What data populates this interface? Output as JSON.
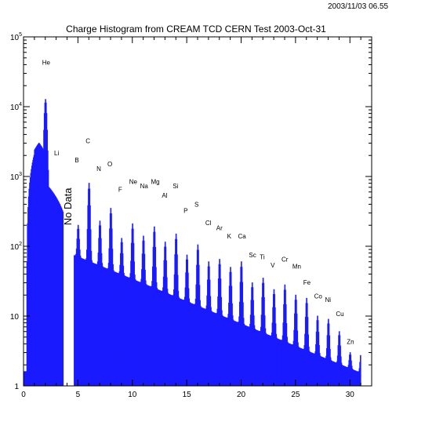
{
  "header": {
    "timestamp": "2003/11/03  06.55",
    "title": "Charge Histogram from CREAM TCD CERN Test 2003-Oct-31"
  },
  "chart_data": {
    "type": "bar",
    "title": "Charge Histogram from CREAM TCD CERN Test 2003-Oct-31",
    "xlabel": "",
    "ylabel": "",
    "xlim": [
      0,
      32
    ],
    "ylim": [
      1,
      100000
    ],
    "y_scale": "log",
    "grid": false,
    "x_ticks": [
      0,
      5,
      10,
      15,
      20,
      25,
      30
    ],
    "y_ticks": [
      {
        "value": 1,
        "base": "1",
        "exp": ""
      },
      {
        "value": 10,
        "base": "10",
        "exp": ""
      },
      {
        "value": 100,
        "base": "10",
        "exp": "2"
      },
      {
        "value": 1000,
        "base": "10",
        "exp": "3"
      },
      {
        "value": 10000,
        "base": "10",
        "exp": "4"
      },
      {
        "value": 100000,
        "base": "10",
        "exp": "5"
      }
    ],
    "bar_color": "#1a1aff",
    "gap": {
      "x_start": 3.6,
      "x_end": 4.6,
      "label": "No Data"
    },
    "element_peaks": [
      {
        "symbol": "He",
        "z": 2,
        "peak_count": 12000,
        "label_x": 2.0,
        "label_y": 40000
      },
      {
        "symbol": "Li",
        "z": 3,
        "peak_count": 500,
        "label_x": 3.1,
        "label_y": 2000
      },
      {
        "symbol": "B",
        "z": 5,
        "peak_count": 200,
        "label_x": 5.0,
        "label_y": 1600
      },
      {
        "symbol": "C",
        "z": 6,
        "peak_count": 800,
        "label_x": 6.0,
        "label_y": 3000
      },
      {
        "symbol": "N",
        "z": 7,
        "peak_count": 230,
        "label_x": 7.0,
        "label_y": 1200
      },
      {
        "symbol": "O",
        "z": 8,
        "peak_count": 350,
        "label_x": 8.0,
        "label_y": 1400
      },
      {
        "symbol": "F",
        "z": 9,
        "peak_count": 130,
        "label_x": 9.0,
        "label_y": 600
      },
      {
        "symbol": "Ne",
        "z": 10,
        "peak_count": 210,
        "label_x": 10.0,
        "label_y": 780
      },
      {
        "symbol": "Na",
        "z": 11,
        "peak_count": 140,
        "label_x": 11.0,
        "label_y": 680
      },
      {
        "symbol": "Mg",
        "z": 12,
        "peak_count": 190,
        "label_x": 12.0,
        "label_y": 780
      },
      {
        "symbol": "Al",
        "z": 13,
        "peak_count": 115,
        "label_x": 13.0,
        "label_y": 500
      },
      {
        "symbol": "Si",
        "z": 14,
        "peak_count": 150,
        "label_x": 14.0,
        "label_y": 680
      },
      {
        "symbol": "P",
        "z": 15,
        "peak_count": 75,
        "label_x": 15.0,
        "label_y": 300
      },
      {
        "symbol": "S",
        "z": 16,
        "peak_count": 105,
        "label_x": 16.0,
        "label_y": 370
      },
      {
        "symbol": "Cl",
        "z": 17,
        "peak_count": 60,
        "label_x": 17.0,
        "label_y": 200
      },
      {
        "symbol": "Ar",
        "z": 18,
        "peak_count": 65,
        "label_x": 18.0,
        "label_y": 170
      },
      {
        "symbol": "K",
        "z": 19,
        "peak_count": 50,
        "label_x": 19.0,
        "label_y": 130
      },
      {
        "symbol": "Ca",
        "z": 20,
        "peak_count": 60,
        "label_x": 20.0,
        "label_y": 130
      },
      {
        "symbol": "Sc",
        "z": 21,
        "peak_count": 30,
        "label_x": 21.0,
        "label_y": 70
      },
      {
        "symbol": "Ti",
        "z": 22,
        "peak_count": 35,
        "label_x": 22.0,
        "label_y": 65
      },
      {
        "symbol": "V",
        "z": 23,
        "peak_count": 24,
        "label_x": 23.0,
        "label_y": 50
      },
      {
        "symbol": "Cr",
        "z": 24,
        "peak_count": 28,
        "label_x": 24.0,
        "label_y": 60
      },
      {
        "symbol": "Mn",
        "z": 25,
        "peak_count": 20,
        "label_x": 25.0,
        "label_y": 48
      },
      {
        "symbol": "Fe",
        "z": 26,
        "peak_count": 18,
        "label_x": 26.0,
        "label_y": 28
      },
      {
        "symbol": "Co",
        "z": 27,
        "peak_count": 10,
        "label_x": 27.0,
        "label_y": 18
      },
      {
        "symbol": "Ni",
        "z": 28,
        "peak_count": 9,
        "label_x": 28.0,
        "label_y": 16
      },
      {
        "symbol": "Cu",
        "z": 29,
        "peak_count": 6,
        "label_x": 29.0,
        "label_y": 10
      },
      {
        "symbol": "Zn",
        "z": 30,
        "peak_count": 3,
        "label_x": 30.0,
        "label_y": 4
      }
    ]
  }
}
